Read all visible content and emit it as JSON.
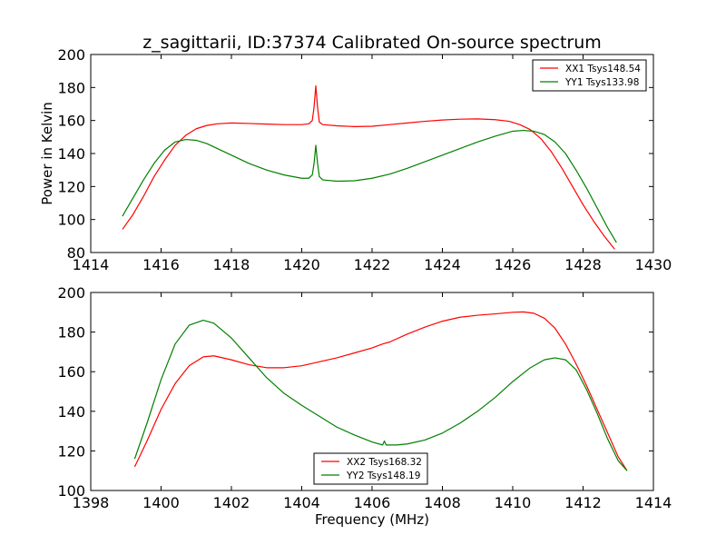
{
  "chart_data": [
    {
      "type": "line",
      "title": "z_sagittarii, ID:37374 Calibrated On-source spectrum",
      "xlabel": "",
      "ylabel": "Power in Kelvin",
      "xlim": [
        1414,
        1430
      ],
      "ylim": [
        80,
        200
      ],
      "xticks": [
        "1414",
        "1416",
        "1418",
        "1420",
        "1422",
        "1424",
        "1426",
        "1428",
        "1430"
      ],
      "yticks": [
        "80",
        "100",
        "120",
        "140",
        "160",
        "180",
        "200"
      ],
      "grid": false,
      "legend_position": "top-right",
      "series": [
        {
          "name": "XX1 Tsys148.54",
          "color": "#ff0000",
          "x": [
            1414.9,
            1415.2,
            1415.5,
            1415.8,
            1416.1,
            1416.4,
            1416.7,
            1417.0,
            1417.3,
            1417.6,
            1418.0,
            1418.5,
            1419.0,
            1419.5,
            1420.0,
            1420.2,
            1420.3,
            1420.35,
            1420.4,
            1420.45,
            1420.5,
            1420.6,
            1421.0,
            1421.5,
            1422.0,
            1422.5,
            1423.0,
            1423.5,
            1424.0,
            1424.5,
            1425.0,
            1425.5,
            1425.9,
            1426.2,
            1426.5,
            1426.8,
            1427.1,
            1427.4,
            1427.7,
            1428.0,
            1428.3,
            1428.6,
            1428.9
          ],
          "y": [
            94,
            103,
            114,
            126,
            136,
            145,
            151,
            155,
            157,
            158,
            158.5,
            158.2,
            157.8,
            157.5,
            157.5,
            158,
            160,
            168,
            181,
            168,
            159,
            157.5,
            156.8,
            156.3,
            156.5,
            157.5,
            158.5,
            159.5,
            160.3,
            160.8,
            161,
            160.5,
            159.5,
            157.5,
            154.5,
            149,
            141,
            131,
            120,
            109,
            99,
            90,
            82
          ]
        },
        {
          "name": "YY1 Tsys133.98",
          "color": "#008000",
          "x": [
            1414.9,
            1415.2,
            1415.5,
            1415.8,
            1416.1,
            1416.4,
            1416.7,
            1417.0,
            1417.3,
            1417.6,
            1418.0,
            1418.5,
            1419.0,
            1419.5,
            1420.0,
            1420.2,
            1420.3,
            1420.35,
            1420.4,
            1420.45,
            1420.5,
            1420.6,
            1421.0,
            1421.5,
            1422.0,
            1422.5,
            1423.0,
            1423.5,
            1424.0,
            1424.5,
            1425.0,
            1425.5,
            1426.0,
            1426.3,
            1426.6,
            1426.9,
            1427.2,
            1427.5,
            1427.8,
            1428.1,
            1428.4,
            1428.7,
            1428.95
          ],
          "y": [
            102,
            113,
            124,
            134,
            142,
            147,
            148.5,
            148,
            146,
            143,
            139,
            134,
            130,
            127,
            125,
            125,
            127,
            134,
            145,
            134,
            126,
            124,
            123.2,
            123.5,
            125,
            127.5,
            131,
            135,
            139,
            143,
            147,
            150.5,
            153.5,
            154,
            153.5,
            151.5,
            147,
            140,
            130,
            119,
            107,
            95,
            86
          ]
        }
      ]
    },
    {
      "type": "line",
      "title": "",
      "xlabel": "Frequency (MHz)",
      "ylabel": "",
      "xlim": [
        1398,
        1414
      ],
      "ylim": [
        100,
        200
      ],
      "xticks": [
        "1398",
        "1400",
        "1402",
        "1404",
        "1406",
        "1408",
        "1410",
        "1412",
        "1414"
      ],
      "yticks": [
        "100",
        "120",
        "140",
        "160",
        "180",
        "200"
      ],
      "grid": false,
      "legend_position": "bottom-center",
      "series": [
        {
          "name": "XX2 Tsys168.32",
          "color": "#ff0000",
          "x": [
            1399.25,
            1399.6,
            1400.0,
            1400.4,
            1400.8,
            1401.2,
            1401.5,
            1402.0,
            1402.5,
            1403.0,
            1403.5,
            1404.0,
            1404.5,
            1405.0,
            1405.5,
            1406.0,
            1406.3,
            1406.5,
            1407.0,
            1407.5,
            1408.0,
            1408.5,
            1409.0,
            1409.5,
            1410.0,
            1410.3,
            1410.6,
            1410.9,
            1411.2,
            1411.5,
            1411.8,
            1412.1,
            1412.4,
            1412.7,
            1413.0,
            1413.25
          ],
          "y": [
            112,
            125,
            141,
            154,
            163,
            167.5,
            168,
            166,
            163.5,
            162,
            162,
            163,
            165,
            167,
            169.5,
            172,
            174,
            175,
            179,
            182.5,
            185.5,
            187.5,
            188.5,
            189.2,
            190,
            190.2,
            189.5,
            187,
            182,
            174,
            164,
            153,
            141,
            129,
            117,
            110
          ]
        },
        {
          "name": "YY2 Tsys148.19",
          "color": "#008000",
          "x": [
            1399.25,
            1399.6,
            1400.0,
            1400.4,
            1400.8,
            1401.2,
            1401.5,
            1402.0,
            1402.5,
            1403.0,
            1403.5,
            1404.0,
            1404.5,
            1405.0,
            1405.5,
            1406.0,
            1406.3,
            1406.35,
            1406.4,
            1406.7,
            1407.0,
            1407.5,
            1408.0,
            1408.5,
            1409.0,
            1409.5,
            1410.0,
            1410.5,
            1410.9,
            1411.2,
            1411.5,
            1411.8,
            1412.1,
            1412.4,
            1412.7,
            1413.0,
            1413.25
          ],
          "y": [
            116,
            134,
            156,
            174,
            183.5,
            186,
            184.5,
            177,
            167,
            157,
            149,
            143,
            137.5,
            132,
            128,
            124.5,
            123,
            125,
            123,
            123,
            123.5,
            125.5,
            129,
            134,
            140,
            147,
            155,
            162,
            166,
            167,
            166,
            161,
            151,
            139,
            126,
            115,
            110
          ]
        }
      ]
    }
  ]
}
